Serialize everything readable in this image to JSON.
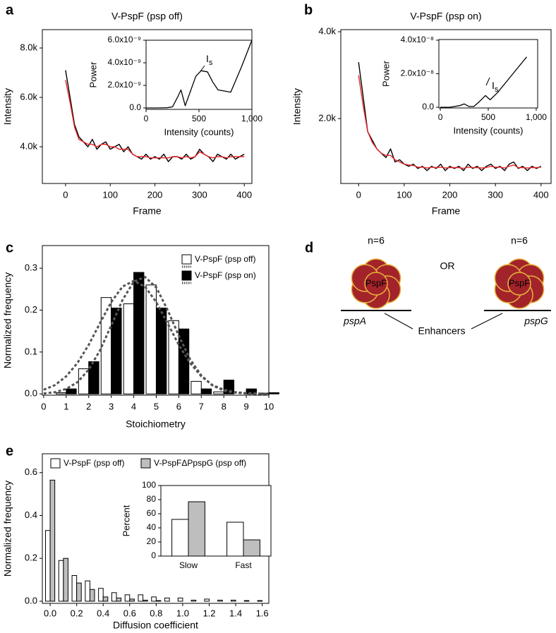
{
  "chart_data": [
    {
      "panel": "a",
      "type": "line",
      "title": "V-PspF (psp off)",
      "x_label": "Frame",
      "y_label": "Intensity",
      "x": [
        0,
        10,
        20,
        30,
        40,
        50,
        60,
        70,
        80,
        90,
        100,
        110,
        120,
        130,
        140,
        150,
        160,
        170,
        180,
        190,
        200,
        210,
        220,
        230,
        240,
        250,
        260,
        270,
        280,
        290,
        300,
        310,
        320,
        330,
        340,
        350,
        360,
        370,
        380,
        390,
        400
      ],
      "series": [
        {
          "color": "#000000",
          "values": [
            7100,
            6000,
            4900,
            4400,
            4200,
            4000,
            4300,
            3900,
            4100,
            4200,
            3900,
            4000,
            4100,
            3800,
            4000,
            3700,
            3600,
            3500,
            3700,
            3500,
            3600,
            3500,
            3700,
            3400,
            3600,
            3600,
            3500,
            3700,
            3500,
            3600,
            3900,
            3700,
            3600,
            3400,
            3700,
            3600,
            3500,
            3700,
            3500,
            3600,
            3700
          ]
        },
        {
          "color": "#e8262a",
          "values": [
            6700,
            5800,
            4800,
            4300,
            4200,
            4100,
            4100,
            4000,
            4100,
            4100,
            4000,
            4000,
            3900,
            3900,
            3900,
            3700,
            3600,
            3600,
            3600,
            3550,
            3550,
            3550,
            3550,
            3550,
            3600,
            3600,
            3550,
            3600,
            3550,
            3600,
            3800,
            3700,
            3600,
            3550,
            3600,
            3600,
            3550,
            3600,
            3600,
            3600,
            3600
          ]
        }
      ],
      "xlim": [
        -52,
        417
      ],
      "ylim": [
        2514,
        8743
      ],
      "xticks": [
        0,
        100,
        200,
        300,
        400
      ],
      "yticks": [
        {
          "value": 4000,
          "label": "4.0k"
        },
        {
          "value": 6000,
          "label": "6.0k"
        },
        {
          "value": 8000,
          "label": "8.0k"
        }
      ]
    },
    {
      "type": "line",
      "x_label": "Intensity (counts)",
      "y_label": "Power",
      "x": [
        0,
        100,
        200,
        250,
        300,
        330,
        370,
        420,
        470,
        520,
        580,
        630,
        680,
        800,
        900,
        1000
      ],
      "series": [
        {
          "color": "#000000",
          "values": [
            0,
            0,
            2e-11,
            1e-10,
            1e-09,
            1.6e-09,
            2e-10,
            1.5e-09,
            2.8e-09,
            3.3e-09,
            3.2e-09,
            2.3e-09,
            1.6e-09,
            1.4e-09,
            3.6e-09,
            6e-09
          ]
        }
      ],
      "xlim": [
        0,
        1000
      ],
      "ylim": [
        -1.25e-10,
        6e-09
      ],
      "xticks": [
        0,
        500,
        {
          "value": 1000,
          "label": "1,000"
        }
      ],
      "yticks": [
        {
          "value": 0,
          "label": "0.0"
        },
        {
          "value": 2e-09,
          "label": "2.0x10⁻⁹"
        },
        {
          "value": 4e-09,
          "label": "4.0x10⁻⁹"
        },
        {
          "value": 6e-09,
          "label": "6.0x10⁻⁹"
        }
      ],
      "annotation": {
        "text": "I",
        "subscript": "s"
      }
    },
    {
      "panel": "b",
      "type": "line",
      "title": "V-PspF (psp on)",
      "x_label": "Frame",
      "y_label": "Intensity",
      "x": [
        0,
        10,
        20,
        30,
        40,
        50,
        60,
        70,
        80,
        90,
        100,
        110,
        120,
        130,
        140,
        150,
        160,
        170,
        180,
        190,
        200,
        210,
        220,
        230,
        240,
        250,
        260,
        270,
        280,
        290,
        300,
        310,
        320,
        330,
        340,
        350,
        360,
        370,
        380,
        390,
        400
      ],
      "series": [
        {
          "color": "#000000",
          "values": [
            3300,
            2500,
            1700,
            1500,
            1300,
            1200,
            1100,
            1300,
            1000,
            1050,
            950,
            900,
            950,
            850,
            900,
            800,
            900,
            850,
            950,
            800,
            900,
            850,
            900,
            800,
            950,
            850,
            900,
            800,
            900,
            950,
            850,
            900,
            800,
            950,
            1000,
            850,
            900,
            800,
            900,
            850,
            900
          ]
        },
        {
          "color": "#e8262a",
          "values": [
            3000,
            2300,
            1700,
            1450,
            1300,
            1200,
            1150,
            1150,
            1050,
            1000,
            950,
            930,
            920,
            880,
            880,
            860,
            880,
            870,
            880,
            860,
            870,
            870,
            870,
            850,
            880,
            870,
            870,
            860,
            870,
            900,
            880,
            880,
            860,
            900,
            930,
            870,
            870,
            860,
            870,
            870,
            880
          ]
        }
      ],
      "xlim": [
        -39,
        422
      ],
      "ylim": [
        504,
        4049
      ],
      "xticks": [
        0,
        100,
        200,
        300,
        400
      ],
      "yticks": [
        {
          "value": 2000,
          "label": "2.0k"
        },
        {
          "value": 4000,
          "label": "4.0k"
        }
      ]
    },
    {
      "type": "line",
      "x_label": "Intensity (counts)",
      "y_label": "Power",
      "x": [
        0,
        100,
        200,
        250,
        300,
        350,
        400,
        470,
        520,
        600,
        700,
        800,
        900
      ],
      "series": [
        {
          "color": "#000000",
          "values": [
            0,
            0,
            1e-09,
            2e-09,
            5e-10,
            5e-10,
            3e-09,
            7e-09,
            4.5e-09,
            9e-09,
            1.6e-08,
            2.3e-08,
            3e-08
          ]
        }
      ],
      "xlim": [
        -15,
        1015
      ],
      "ylim": [
        -4e-10,
        4.04e-08
      ],
      "xticks": [
        0,
        500,
        {
          "value": 1000,
          "label": "1,000"
        }
      ],
      "yticks": [
        {
          "value": 0,
          "label": "0.0"
        },
        {
          "value": 2e-08,
          "label": "2.0x10⁻⁸"
        },
        {
          "value": 4e-08,
          "label": "4.0x10⁻⁸"
        }
      ],
      "annotation": {
        "text": "I",
        "subscript": "s"
      }
    },
    {
      "panel": "c",
      "type": "bar",
      "x_label": "Stoichiometry",
      "y_label": "Normalized frequency",
      "legend": "upper right",
      "x": [
        1,
        2,
        3,
        4,
        5,
        6,
        7,
        8,
        9,
        10
      ],
      "series": [
        {
          "name": "V-PspF (psp off)",
          "color": "#ffffff",
          "values": [
            0.003,
            0.06,
            0.23,
            0.215,
            0.26,
            0.175,
            0.03,
            0.005,
            0,
            0.002
          ],
          "fit": [
            0.01,
            0.021,
            0.042,
            0.074,
            0.117,
            0.169,
            0.219,
            0.256,
            0.27,
            0.256,
            0.219,
            0.169,
            0.117,
            0.074,
            0.042,
            0.021,
            0.01,
            0.004,
            0.002,
            0.001,
            0
          ]
        },
        {
          "name": "V-PspF (psp on)",
          "color": "#000000",
          "values": [
            0.012,
            0.077,
            0.205,
            0.29,
            0.205,
            0.155,
            0.012,
            0.033,
            0.012,
            0.003
          ],
          "fit": [
            0.001,
            0.004,
            0.012,
            0.028,
            0.058,
            0.104,
            0.163,
            0.224,
            0.268,
            0.279,
            0.254,
            0.201,
            0.139,
            0.083,
            0.044,
            0.02,
            0.008,
            0.003,
            0.001,
            0,
            0
          ]
        }
      ],
      "fit_x": [
        0,
        0.5,
        1,
        1.5,
        2,
        2.5,
        3,
        3.5,
        4,
        4.5,
        5,
        5.5,
        6,
        6.5,
        7,
        7.5,
        8,
        8.5,
        9,
        9.5,
        10
      ],
      "fit_color": "#555555",
      "xlim": [
        -0.06,
        10
      ],
      "ylim": [
        -0.003,
        0.354
      ],
      "xticks": [
        0,
        1,
        2,
        3,
        4,
        5,
        6,
        7,
        8,
        9,
        10
      ],
      "yticks": [
        {
          "value": 0,
          "label": "0.0"
        },
        0.1,
        0.2,
        0.3
      ]
    },
    {
      "panel": "e",
      "type": "bar",
      "x_label": "Diffusion coefficient",
      "y_label": "Normalized frequency",
      "legend": "upper left",
      "x": [
        0,
        0.1,
        0.2,
        0.3,
        0.4,
        0.5,
        0.6,
        0.7,
        0.8,
        0.9,
        1.0,
        1.1,
        1.2,
        1.3,
        1.4,
        1.5,
        1.6
      ],
      "series": [
        {
          "name": "V-PspF (psp off)",
          "color": "#ffffff",
          "values": [
            0.33,
            0.19,
            0.12,
            0.095,
            0.06,
            0.04,
            0.03,
            0.03,
            0.02,
            0.015,
            0.015,
            0.005,
            0.01,
            0.005,
            0.005,
            0.003,
            0.003
          ]
        },
        {
          "name": "V-PspFΔPpspG (psp off)",
          "color": "#bebebe",
          "values": [
            0.565,
            0.2,
            0.085,
            0.055,
            0.02,
            0.015,
            0.01,
            0.005,
            0.003,
            0,
            0,
            0,
            0,
            0,
            0,
            0,
            0
          ]
        }
      ],
      "xlim": [
        -0.059,
        1.65
      ],
      "ylim": [
        -0.01,
        0.688
      ],
      "xticks": [
        {
          "value": 0,
          "label": "0.0"
        },
        0.2,
        0.4,
        0.6,
        0.8,
        {
          "value": 1,
          "label": "1.0"
        },
        1.2,
        1.4,
        1.6
      ],
      "yticks": [
        {
          "value": 0,
          "label": "0.0"
        },
        0.2,
        0.4,
        0.6
      ]
    },
    {
      "type": "bar",
      "y_label": "Percent",
      "categories": [
        "Slow",
        "Fast"
      ],
      "series": [
        {
          "color": "#ffffff",
          "values": [
            52,
            48
          ]
        },
        {
          "color": "#bebebe",
          "values": [
            77,
            23
          ]
        }
      ],
      "ylim": [
        0,
        100
      ],
      "yticks": [
        0,
        20,
        40,
        60,
        80,
        100
      ]
    }
  ],
  "diagram": {
    "panel": "d",
    "left": {
      "stoichiometry": "n=6",
      "protein": "PspF",
      "promoter": "pspA"
    },
    "separator": "OR",
    "right": {
      "stoichiometry": "n=6",
      "protein": "PspF",
      "promoter": "pspG"
    },
    "callout": "Enhancers"
  }
}
